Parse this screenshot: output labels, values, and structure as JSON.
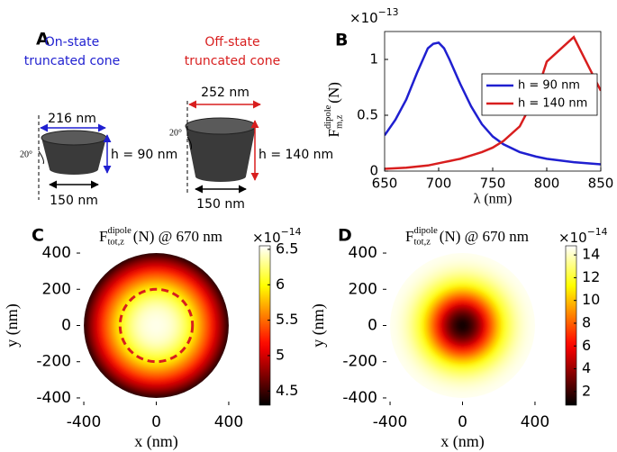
{
  "panel_a": {
    "label": "A",
    "on_state": {
      "lines": [
        "On-state",
        "truncated cone"
      ],
      "top": "216 nm",
      "height": "h = 90 nm",
      "angle": "20°",
      "bottom": "150 nm"
    },
    "off_state": {
      "lines": [
        "Off-state",
        "truncated cone"
      ],
      "top": "252 nm",
      "height": "h = 140 nm",
      "angle": "20°",
      "bottom": "150 nm"
    }
  },
  "chart_data": [
    {
      "type": "line",
      "panel_label": "B",
      "scale_label": {
        "base": "×10",
        "exponent": "−13"
      },
      "ylabel": {
        "main": "F",
        "sup": "dipole",
        "sub": "m,z",
        "rest": "(N)"
      },
      "xlabel": "λ (nm)",
      "x": [
        650,
        660,
        670,
        680,
        690,
        695,
        700,
        705,
        710,
        720,
        730,
        740,
        750,
        760,
        775,
        790,
        800,
        825,
        850
      ],
      "series": [
        {
          "name": "h = 90 nm",
          "color": "#1f1fd0",
          "values": [
            0.32,
            0.46,
            0.64,
            0.88,
            1.1,
            1.14,
            1.15,
            1.1,
            1.0,
            0.78,
            0.58,
            0.42,
            0.31,
            0.24,
            0.17,
            0.13,
            0.11,
            0.08,
            0.06
          ]
        },
        {
          "name": "h = 140 nm",
          "color": "#d81e1e",
          "values": [
            0.02,
            0.025,
            0.03,
            0.04,
            0.05,
            0.06,
            0.07,
            0.08,
            0.09,
            0.11,
            0.14,
            0.17,
            0.21,
            0.27,
            0.4,
            0.68,
            0.98,
            1.2,
            0.72
          ]
        }
      ],
      "xlim": [
        650,
        850
      ],
      "ylim": [
        0,
        1.25
      ],
      "xticks": [
        650,
        700,
        750,
        800,
        850
      ],
      "yticks": [
        0,
        0.5,
        1
      ]
    },
    {
      "type": "radial-heatmap",
      "panel_label": "C",
      "title": {
        "main": "F",
        "sup": "dipole",
        "sub": "tot,z",
        "rest": "(N) @ 670 nm"
      },
      "xlabel": "x (nm)",
      "ylabel": "y (nm)",
      "scale_label": {
        "base": "×10",
        "exponent": "−14"
      },
      "colormap": "hot",
      "r": [
        0,
        25,
        50,
        75,
        100,
        125,
        150,
        175,
        200,
        225,
        250,
        275,
        300,
        325,
        350,
        375,
        400
      ],
      "values": [
        6.5,
        6.5,
        6.48,
        6.45,
        6.4,
        6.32,
        6.22,
        6.1,
        5.95,
        5.8,
        5.62,
        5.45,
        5.25,
        5.05,
        4.85,
        4.62,
        4.35
      ],
      "dashed_circle_radius": 200,
      "xlim": [
        -440,
        440
      ],
      "ylim": [
        -440,
        440
      ],
      "xticks": [
        -400,
        0,
        400
      ],
      "yticks": [
        -400,
        -200,
        0,
        200,
        400
      ],
      "clim": [
        4.3,
        6.55
      ],
      "cticks": [
        4.5,
        5,
        5.5,
        6,
        6.5
      ]
    },
    {
      "type": "radial-heatmap",
      "panel_label": "D",
      "title": {
        "main": "F",
        "sup": "dipole",
        "sub": "tot,z",
        "rest": "(N) @ 670 nm"
      },
      "xlabel": "x (nm)",
      "ylabel": "y (nm)",
      "scale_label": {
        "base": "×10",
        "exponent": "−14"
      },
      "colormap": "hot",
      "r": [
        0,
        25,
        50,
        75,
        100,
        125,
        150,
        175,
        200,
        225,
        250,
        275,
        300,
        325,
        350,
        375,
        400
      ],
      "values": [
        1.0,
        1.3,
        2.0,
        3.0,
        4.3,
        5.8,
        7.3,
        8.8,
        10.2,
        11.3,
        12.3,
        13.0,
        13.6,
        14.0,
        14.3,
        14.5,
        14.6
      ],
      "xlim": [
        -440,
        440
      ],
      "ylim": [
        -440,
        440
      ],
      "xticks": [
        -400,
        0,
        400
      ],
      "yticks": [
        -400,
        -200,
        0,
        200,
        400
      ],
      "clim": [
        0.8,
        14.8
      ],
      "cticks": [
        2,
        4,
        6,
        8,
        10,
        12,
        14
      ]
    }
  ]
}
